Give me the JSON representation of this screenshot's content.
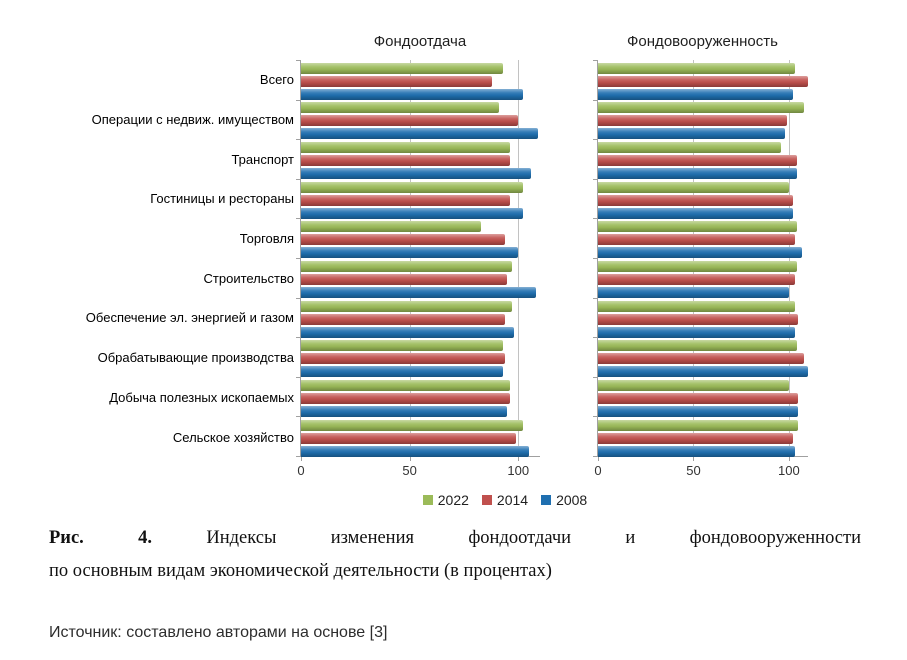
{
  "figure": {
    "caption_label": "Рис. 4.",
    "caption_line1_rest": "Индексы изменения фондоотдачи и фондовооруженности",
    "caption_line2": "по основным видам экономической деятельности (в процентах)",
    "source": "Источник: составлено авторами на основе [3]"
  },
  "legend": [
    {
      "label": "2022",
      "color": "#9bbb59"
    },
    {
      "label": "2014",
      "color": "#c0504d"
    },
    {
      "label": "2008",
      "color": "#1f6fb0"
    }
  ],
  "chart_data": [
    {
      "type": "bar",
      "orientation": "horizontal",
      "title": "Фондоотдача",
      "categories": [
        "Всего",
        "Операции с недвиж. имуществом",
        "Транспорт",
        "Гостиницы и рестораны",
        "Торговля",
        "Строительство",
        "Обеспечение эл. энергией и газом",
        "Обрабатывающие производства",
        "Добыча полезных ископаемых",
        "Сельское хозяйство"
      ],
      "series": [
        {
          "name": "2022",
          "color": "#9bbb59",
          "values": [
            93,
            91,
            96,
            102,
            83,
            97,
            97,
            93,
            96,
            102
          ]
        },
        {
          "name": "2014",
          "color": "#c0504d",
          "values": [
            88,
            100,
            96,
            96,
            94,
            95,
            94,
            94,
            96,
            99
          ]
        },
        {
          "name": "2008",
          "color": "#1f6fb0",
          "values": [
            102,
            109,
            106,
            102,
            100,
            108,
            98,
            93,
            95,
            105
          ]
        }
      ],
      "xlim": [
        0,
        110
      ],
      "xticks": [
        0,
        50,
        100
      ],
      "gridlines": [
        50,
        100
      ],
      "unit": "percent",
      "legend_position": "bottom"
    },
    {
      "type": "bar",
      "orientation": "horizontal",
      "title": "Фондовооруженность",
      "categories": [
        "Всего",
        "Операции с недвиж. имуществом",
        "Транспорт",
        "Гостиницы и рестораны",
        "Торговля",
        "Строительство",
        "Обеспечение эл. энергией и газом",
        "Обрабатывающие производства",
        "Добыча полезных ископаемых",
        "Сельское хозяйство"
      ],
      "series": [
        {
          "name": "2022",
          "color": "#9bbb59",
          "values": [
            103,
            108,
            96,
            100,
            104,
            104,
            103,
            104,
            100,
            105
          ]
        },
        {
          "name": "2014",
          "color": "#c0504d",
          "values": [
            110,
            99,
            104,
            102,
            103,
            103,
            105,
            108,
            105,
            102
          ]
        },
        {
          "name": "2008",
          "color": "#1f6fb0",
          "values": [
            102,
            98,
            104,
            102,
            107,
            100,
            103,
            110,
            105,
            103
          ]
        }
      ],
      "xlim": [
        0,
        110
      ],
      "xticks": [
        0,
        50,
        100
      ],
      "gridlines": [
        50,
        100
      ],
      "unit": "percent",
      "legend_position": "bottom"
    }
  ]
}
